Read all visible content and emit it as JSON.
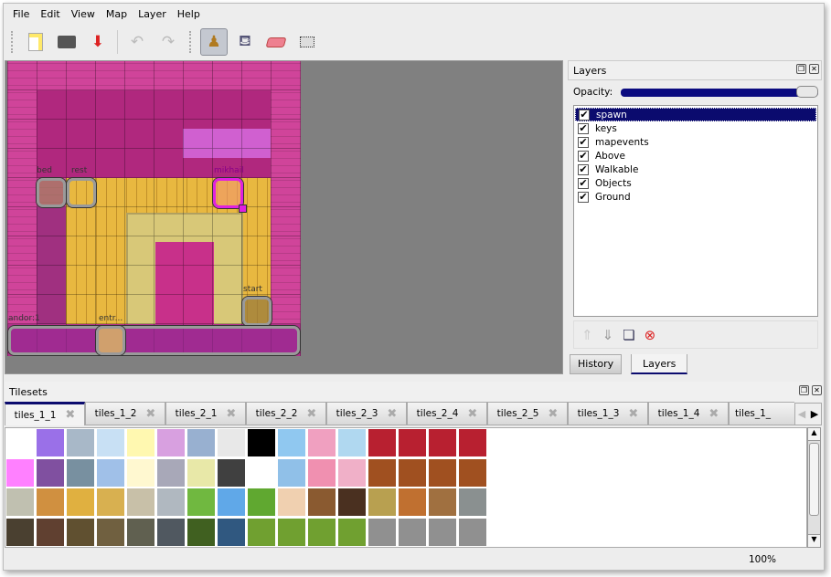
{
  "menu": [
    "File",
    "Edit",
    "View",
    "Map",
    "Layer",
    "Help"
  ],
  "toolbar": {
    "new_icon": "new-map-icon",
    "open_icon": "open-icon",
    "save_icon": "save-icon",
    "undo_icon": "undo-icon",
    "redo_icon": "redo-icon",
    "stamp_icon": "stamp-brush-icon",
    "fill_icon": "bucket-fill-icon",
    "eraser_icon": "eraser-icon",
    "select_icon": "rect-select-icon",
    "active_tool": "stamp"
  },
  "map": {
    "objects": [
      "bed",
      "rest",
      "mikhail",
      "start",
      "andor:1",
      "entr..."
    ]
  },
  "layers_panel": {
    "title": "Layers",
    "opacity_label": "Opacity:",
    "opacity": 100,
    "items": [
      {
        "name": "spawn",
        "visible": true,
        "selected": true
      },
      {
        "name": "keys",
        "visible": true
      },
      {
        "name": "mapevents",
        "visible": true
      },
      {
        "name": "Above",
        "visible": true
      },
      {
        "name": "Walkable",
        "visible": true
      },
      {
        "name": "Objects",
        "visible": true
      },
      {
        "name": "Ground",
        "visible": true
      }
    ],
    "tabs": [
      "History",
      "Layers"
    ],
    "active_tab": "Layers"
  },
  "tilesets": {
    "title": "Tilesets",
    "tabs": [
      "tiles_1_1",
      "tiles_1_2",
      "tiles_2_1",
      "tiles_2_2",
      "tiles_2_3",
      "tiles_2_4",
      "tiles_2_5",
      "tiles_1_3",
      "tiles_1_4",
      "tiles_1_"
    ],
    "active_tab": "tiles_1_1"
  },
  "status": {
    "zoom": "100%"
  },
  "colors": {
    "selection": "#0b0b6e",
    "map_bg": "#808080"
  }
}
